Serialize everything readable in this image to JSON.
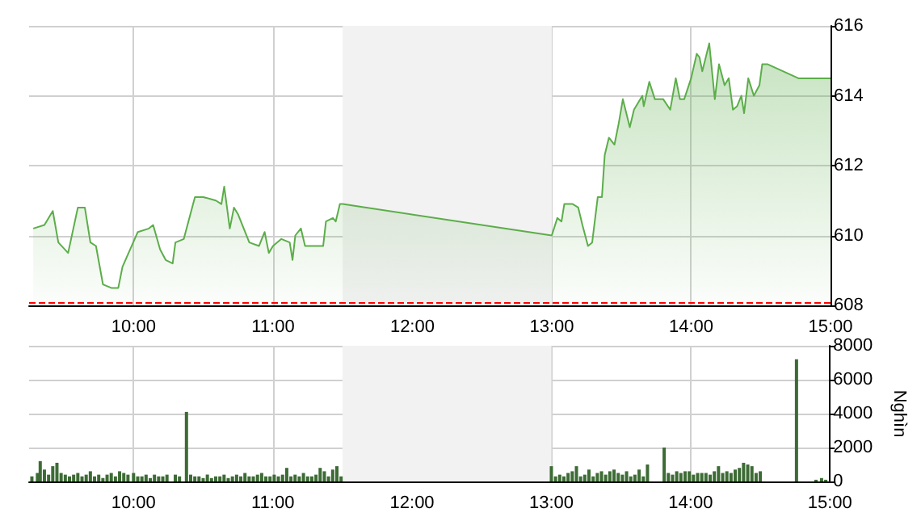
{
  "chart_data": [
    {
      "type": "area",
      "color": "#5cad4a",
      "xlim": [
        9.25,
        15
      ],
      "xticks": [
        {
          "value": 10,
          "label": "10:00"
        },
        {
          "value": 11,
          "label": "11:00"
        },
        {
          "value": 12,
          "label": "12:00"
        },
        {
          "value": 13,
          "label": "13:00"
        },
        {
          "value": 14,
          "label": "14:00"
        },
        {
          "value": 15,
          "label": "15:00"
        }
      ],
      "ylim": [
        608,
        616
      ],
      "yticks": [
        608,
        610,
        612,
        614,
        616
      ],
      "grid": true,
      "x": [
        9.28,
        9.36,
        9.42,
        9.46,
        9.53,
        9.6,
        9.65,
        9.69,
        9.73,
        9.78,
        9.84,
        9.89,
        9.92,
        10.03,
        10.11,
        10.14,
        10.19,
        10.23,
        10.28,
        10.3,
        10.36,
        10.44,
        10.5,
        10.59,
        10.63,
        10.65,
        10.69,
        10.72,
        10.75,
        10.83,
        10.9,
        10.94,
        10.97,
        11.0,
        11.06,
        11.12,
        11.14,
        11.16,
        11.2,
        11.23,
        11.29,
        11.36,
        11.38,
        11.43,
        11.45,
        11.48,
        11.5,
        13.0,
        13.04,
        13.07,
        13.09,
        13.15,
        13.19,
        13.22,
        13.26,
        13.29,
        13.33,
        13.36,
        13.38,
        13.41,
        13.45,
        13.48,
        13.51,
        13.56,
        13.59,
        13.65,
        13.66,
        13.7,
        13.74,
        13.8,
        13.85,
        13.89,
        13.92,
        13.95,
        14.0,
        14.04,
        14.06,
        14.08,
        14.13,
        14.17,
        14.2,
        14.24,
        14.27,
        14.3,
        14.33,
        14.36,
        14.38,
        14.41,
        14.45,
        14.49,
        14.51,
        14.55,
        14.77,
        15.0
      ],
      "values": [
        610.2,
        610.3,
        610.7,
        609.8,
        609.5,
        610.8,
        610.8,
        609.8,
        609.7,
        608.6,
        608.5,
        608.5,
        609.1,
        610.1,
        610.2,
        610.3,
        609.6,
        609.3,
        609.2,
        609.8,
        609.9,
        611.1,
        611.1,
        611.0,
        610.9,
        611.4,
        610.2,
        610.8,
        610.6,
        609.8,
        609.7,
        610.1,
        609.5,
        609.7,
        609.9,
        609.8,
        609.3,
        610.0,
        610.2,
        609.7,
        609.7,
        609.7,
        610.4,
        610.5,
        610.4,
        610.9,
        610.9,
        610.0,
        610.5,
        610.4,
        610.9,
        610.9,
        610.8,
        610.3,
        609.7,
        609.8,
        611.1,
        611.1,
        612.3,
        612.8,
        612.6,
        613.2,
        613.9,
        613.1,
        613.6,
        614.0,
        613.7,
        614.4,
        613.9,
        613.9,
        613.6,
        614.5,
        613.9,
        613.9,
        614.5,
        615.2,
        615.1,
        614.7,
        615.5,
        613.9,
        614.9,
        614.3,
        614.5,
        613.6,
        613.7,
        614.0,
        613.5,
        614.5,
        614.0,
        614.3,
        614.9,
        614.9,
        614.5,
        614.5
      ],
      "bands": [
        {
          "axis": "x",
          "from": 11.5,
          "to": 13,
          "color": "#f2f2f2"
        }
      ],
      "ref_lines": [
        {
          "axis": "y",
          "value": 608.1,
          "color": "#ff0000",
          "line_style": "dashed"
        }
      ]
    },
    {
      "type": "bar",
      "color": "#3d6b35",
      "ylabel": "Nghìn",
      "xlim": [
        9.25,
        15
      ],
      "xticks": [
        {
          "value": 10,
          "label": "10:00"
        },
        {
          "value": 11,
          "label": "11:00"
        },
        {
          "value": 12,
          "label": "12:00"
        },
        {
          "value": 13,
          "label": "13:00"
        },
        {
          "value": 14,
          "label": "14:00"
        },
        {
          "value": 15,
          "label": "15:00"
        }
      ],
      "ylim": [
        0,
        8000
      ],
      "yticks": [
        0,
        2000,
        4000,
        6000,
        8000
      ],
      "grid": true,
      "x": [
        9.27,
        9.31,
        9.33,
        9.36,
        9.39,
        9.42,
        9.45,
        9.48,
        9.51,
        9.54,
        9.57,
        9.6,
        9.63,
        9.66,
        9.69,
        9.72,
        9.75,
        9.78,
        9.81,
        9.84,
        9.87,
        9.9,
        9.93,
        9.96,
        10.0,
        10.03,
        10.06,
        10.09,
        10.12,
        10.15,
        10.18,
        10.21,
        10.24,
        10.3,
        10.33,
        10.38,
        10.41,
        10.44,
        10.47,
        10.5,
        10.53,
        10.56,
        10.59,
        10.62,
        10.65,
        10.68,
        10.71,
        10.74,
        10.77,
        10.8,
        10.83,
        10.86,
        10.89,
        10.92,
        10.95,
        10.98,
        11.01,
        11.04,
        11.07,
        11.1,
        11.13,
        11.16,
        11.19,
        11.22,
        11.25,
        11.28,
        11.31,
        11.34,
        11.37,
        11.4,
        11.43,
        11.46,
        11.49,
        13.0,
        13.03,
        13.06,
        13.09,
        13.12,
        13.15,
        13.18,
        13.21,
        13.24,
        13.27,
        13.3,
        13.33,
        13.36,
        13.39,
        13.42,
        13.45,
        13.48,
        13.51,
        13.54,
        13.57,
        13.6,
        13.63,
        13.66,
        13.69,
        13.81,
        13.84,
        13.87,
        13.9,
        13.93,
        13.96,
        13.99,
        14.02,
        14.05,
        14.08,
        14.11,
        14.14,
        14.17,
        14.2,
        14.23,
        14.26,
        14.29,
        14.32,
        14.35,
        14.38,
        14.41,
        14.44,
        14.47,
        14.5,
        14.76,
        14.9,
        14.94,
        14.97
      ],
      "values": [
        300,
        500,
        1200,
        700,
        400,
        900,
        1100,
        500,
        400,
        300,
        400,
        500,
        300,
        400,
        600,
        300,
        400,
        200,
        400,
        500,
        300,
        600,
        500,
        400,
        500,
        300,
        300,
        400,
        200,
        400,
        300,
        300,
        400,
        400,
        300,
        4100,
        400,
        300,
        300,
        200,
        400,
        200,
        300,
        300,
        400,
        200,
        300,
        400,
        300,
        500,
        300,
        300,
        400,
        500,
        300,
        300,
        400,
        300,
        400,
        800,
        300,
        400,
        300,
        500,
        300,
        300,
        400,
        800,
        600,
        300,
        700,
        900,
        300,
        900,
        300,
        400,
        300,
        500,
        600,
        900,
        300,
        400,
        700,
        300,
        500,
        600,
        400,
        600,
        700,
        500,
        400,
        600,
        300,
        400,
        700,
        300,
        1000,
        2000,
        500,
        400,
        600,
        500,
        600,
        600,
        400,
        500,
        500,
        500,
        400,
        600,
        900,
        500,
        600,
        500,
        700,
        800,
        1100,
        1000,
        900,
        500,
        600,
        7200,
        100,
        200,
        100
      ],
      "bands": [
        {
          "axis": "x",
          "from": 11.5,
          "to": 13,
          "color": "#f2f2f2"
        }
      ]
    }
  ]
}
